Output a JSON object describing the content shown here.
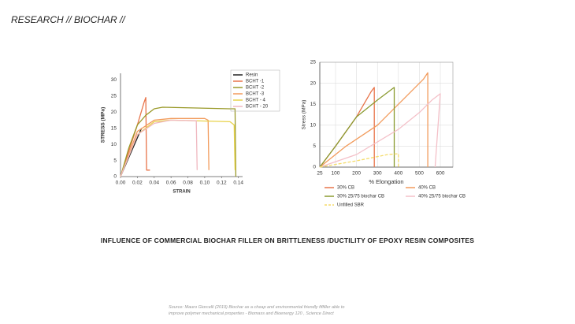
{
  "header": "RESEARCH // BIOCHAR //",
  "caption": "INFLUENCE OF COMMERCIAL  BIOCHAR FILLER ON BRITTLENESS /DUCTILITY OF EPOXY RESIN COMPOSITES",
  "source": [
    "Source: Mauro Giorcelli (2019) Biochar as a cheap and environmental friendly fiffiller able to",
    "improve polymer mechanical  properties  - Biomass and Bioenergy 120 , Science Direct"
  ],
  "chart_data": [
    {
      "type": "line",
      "x_label": "STRAIN",
      "y_label": "STRESS (MPa)",
      "xlim": [
        0,
        0.145
      ],
      "ylim": [
        0,
        32
      ],
      "xticks": [
        {
          "value": 0,
          "label": "0.00"
        },
        0.02,
        0.04,
        0.06,
        0.08,
        {
          "value": 0.1,
          "label": "0.10"
        },
        0.12,
        0.14
      ],
      "yticks": [
        0,
        5,
        10,
        15,
        20,
        25,
        30
      ],
      "grid": false,
      "legend": "upper right",
      "series": [
        {
          "name": "Resin",
          "color": "#222222",
          "x": [
            0,
            0.01,
            0.02,
            0.025
          ],
          "values": [
            0,
            6,
            12,
            15
          ]
        },
        {
          "name": "BCHT -1",
          "color": "#e8744a",
          "x": [
            0,
            0.01,
            0.02,
            0.028,
            0.03,
            0.031,
            0.035
          ],
          "values": [
            0,
            8,
            16,
            23,
            24.5,
            2,
            2
          ]
        },
        {
          "name": "BCHT -2",
          "color": "#9a9a2a",
          "x": [
            0,
            0.01,
            0.02,
            0.03,
            0.04,
            0.05,
            0.13,
            0.136,
            0.137
          ],
          "values": [
            0,
            9,
            16,
            19,
            21,
            21.5,
            21,
            21,
            0
          ]
        },
        {
          "name": "BCHT -3",
          "color": "#f29b5c",
          "x": [
            0,
            0.02,
            0.04,
            0.06,
            0.1,
            0.104,
            0.105
          ],
          "values": [
            0,
            14,
            17.5,
            18,
            18,
            17.5,
            2
          ]
        },
        {
          "name": "BCHT - 4",
          "color": "#e8d24a",
          "x": [
            0,
            0.02,
            0.04,
            0.06,
            0.13,
            0.135,
            0.136
          ],
          "values": [
            0,
            13,
            17,
            17.5,
            17,
            16,
            2
          ]
        },
        {
          "name": "BCHT - 20",
          "color": "#f0b8c0",
          "x": [
            0,
            0.02,
            0.04,
            0.06,
            0.09,
            0.091
          ],
          "values": [
            0,
            13,
            16.5,
            17.5,
            17.3,
            2
          ]
        }
      ]
    },
    {
      "type": "line",
      "x_label": "% Elongation",
      "y_label": "Stress (MPa)",
      "xlim": [
        25,
        660
      ],
      "ylim": [
        0,
        25
      ],
      "xticks": [
        25,
        100,
        200,
        300,
        400,
        500,
        600
      ],
      "yticks": [
        0,
        5,
        10,
        15,
        20,
        25
      ],
      "grid": true,
      "legend": "bottom",
      "series": [
        {
          "name": "30% CB",
          "color": "#e8744a",
          "x": [
            25,
            100,
            200,
            270,
            285,
            285
          ],
          "values": [
            0,
            5,
            12,
            18,
            19,
            0
          ]
        },
        {
          "name": "40% CB",
          "color": "#f29b5c",
          "x": [
            25,
            150,
            300,
            420,
            520,
            540,
            540
          ],
          "values": [
            0,
            5,
            10,
            16,
            21,
            22.5,
            0
          ]
        },
        {
          "name": "30% 25/75 biochar CB",
          "color": "#8a9a30",
          "x": [
            25,
            100,
            200,
            300,
            380,
            380
          ],
          "values": [
            0,
            5,
            12,
            16,
            19,
            0
          ]
        },
        {
          "name": "40% 25/75 biochar CB",
          "color": "#f4c0c8",
          "x": [
            25,
            200,
            400,
            500,
            560,
            600,
            575
          ],
          "values": [
            0,
            3,
            9,
            13,
            16,
            17.5,
            0
          ]
        },
        {
          "name": "Unfilled SBR",
          "color": "#f5dc6a",
          "dash": true,
          "x": [
            25,
            200,
            350,
            400,
            400
          ],
          "values": [
            0,
            1.5,
            3,
            3.2,
            0
          ]
        }
      ]
    }
  ]
}
